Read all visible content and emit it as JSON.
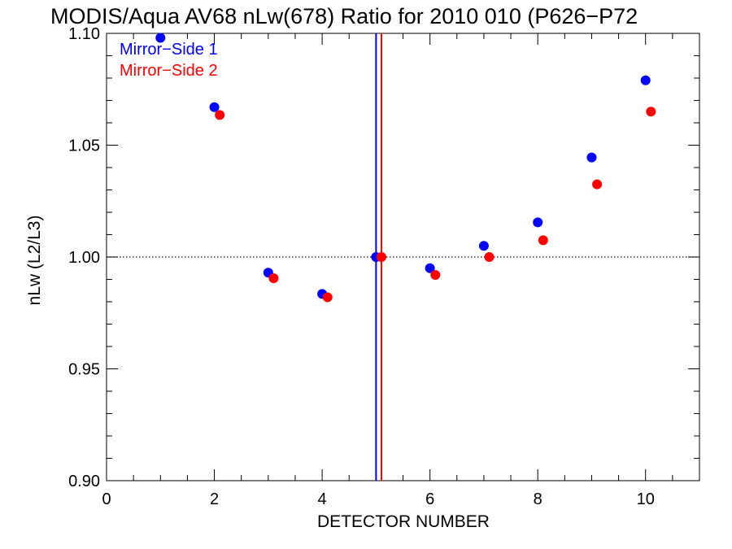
{
  "chart_data": {
    "type": "scatter",
    "title": "MODIS/Aqua AV68 nLw(678) Ratio for 2010 010 (P626−P72",
    "xlabel": "DETECTOR NUMBER",
    "ylabel": "nLw (L2/L3)",
    "xlim": [
      0,
      11
    ],
    "ylim": [
      0.9,
      1.1
    ],
    "xticks": [
      0,
      2,
      4,
      6,
      8,
      10
    ],
    "xtick_labels": [
      "0",
      "2",
      "4",
      "6",
      "8",
      "10"
    ],
    "yticks": [
      0.9,
      0.95,
      1.0,
      1.05,
      1.1
    ],
    "ytick_labels": [
      "0.90",
      "0.95",
      "1.00",
      "1.05",
      "1.10"
    ],
    "reference_line": {
      "y": 1.0,
      "style": "dotted"
    },
    "vertical_lines": [
      {
        "x": 5.0,
        "color": "#0000ff"
      },
      {
        "x": 5.1,
        "color": "#ff0000"
      }
    ],
    "legend_position": "top-left",
    "series": [
      {
        "name": "Mirror−Side 1",
        "color": "#0000ff",
        "x": [
          1,
          2,
          3,
          4,
          5,
          6,
          7,
          8,
          9,
          10
        ],
        "y": [
          1.098,
          1.067,
          0.993,
          0.9835,
          1.0,
          0.995,
          1.005,
          1.0155,
          1.0445,
          1.079
        ]
      },
      {
        "name": "Mirror−Side 2",
        "color": "#ff0000",
        "x": [
          2.1,
          3.1,
          4.1,
          5.1,
          6.1,
          7.1,
          8.1,
          9.1,
          10.1
        ],
        "y": [
          1.0635,
          0.9905,
          0.982,
          1.0,
          0.992,
          1.0,
          1.0075,
          1.0325,
          1.065
        ]
      }
    ]
  }
}
